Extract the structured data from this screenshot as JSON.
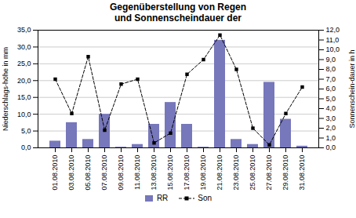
{
  "chart_data": {
    "type": "bar",
    "title": "Gegenüberstellung von Regen\nund Sonnenscheindauer der",
    "ylabel": "Niederschlags-höhe in mm",
    "y2label": "Sonnenschein-dauer in h",
    "categories": [
      "01.08.2010",
      "03.08.2010",
      "05.08.2010",
      "07.08.2010",
      "09.08.2010",
      "11.08.2010",
      "13.08.2010",
      "15.08.2010",
      "17.08.2010",
      "19.08.2010",
      "21.08.2010",
      "23.08.2010",
      "25.08.2010",
      "27.08.2010",
      "29.08.2010",
      "31.08.2010"
    ],
    "series": [
      {
        "name": "RR",
        "type": "bar",
        "color": "#7777bb",
        "values": [
          2.0,
          7.5,
          2.5,
          10.0,
          0.2,
          1.0,
          7.0,
          13.5,
          7.0,
          0.2,
          32.0,
          2.5,
          1.0,
          19.5,
          8.5,
          0.5
        ]
      },
      {
        "name": "Son",
        "type": "line",
        "axis": "y2",
        "color": "#000000",
        "marker": "square",
        "line_style": "dashed",
        "values": [
          7.0,
          3.5,
          9.3,
          1.8,
          6.5,
          7.0,
          0.5,
          1.5,
          7.5,
          9.0,
          11.5,
          8.0,
          2.0,
          0.3,
          3.5,
          6.2
        ]
      }
    ],
    "ylim": [
      0,
      35
    ],
    "yticks": [
      {
        "value": 0,
        "label": "0,0"
      },
      {
        "value": 5,
        "label": "5,0"
      },
      {
        "value": 10,
        "label": "10,0"
      },
      {
        "value": 15,
        "label": "15,0"
      },
      {
        "value": 20,
        "label": "20,0"
      },
      {
        "value": 25,
        "label": "25,0"
      },
      {
        "value": 30,
        "label": "30,0"
      },
      {
        "value": 35,
        "label": "35,0"
      }
    ],
    "y2lim": [
      0,
      12
    ],
    "y2ticks": [
      {
        "value": 0,
        "label": "0,0"
      },
      {
        "value": 1,
        "label": "1,0"
      },
      {
        "value": 2,
        "label": "2,0"
      },
      {
        "value": 3,
        "label": "3,0"
      },
      {
        "value": 4,
        "label": "4,0"
      },
      {
        "value": 5,
        "label": "5,0"
      },
      {
        "value": 6,
        "label": "6,0"
      },
      {
        "value": 7,
        "label": "7,0"
      },
      {
        "value": 8,
        "label": "8,0"
      },
      {
        "value": 9,
        "label": "9,0"
      },
      {
        "value": 10,
        "label": "10,0"
      },
      {
        "value": 11,
        "label": "11,0"
      },
      {
        "value": 12,
        "label": "12,0"
      }
    ],
    "grid": true,
    "legend": "bottom"
  }
}
